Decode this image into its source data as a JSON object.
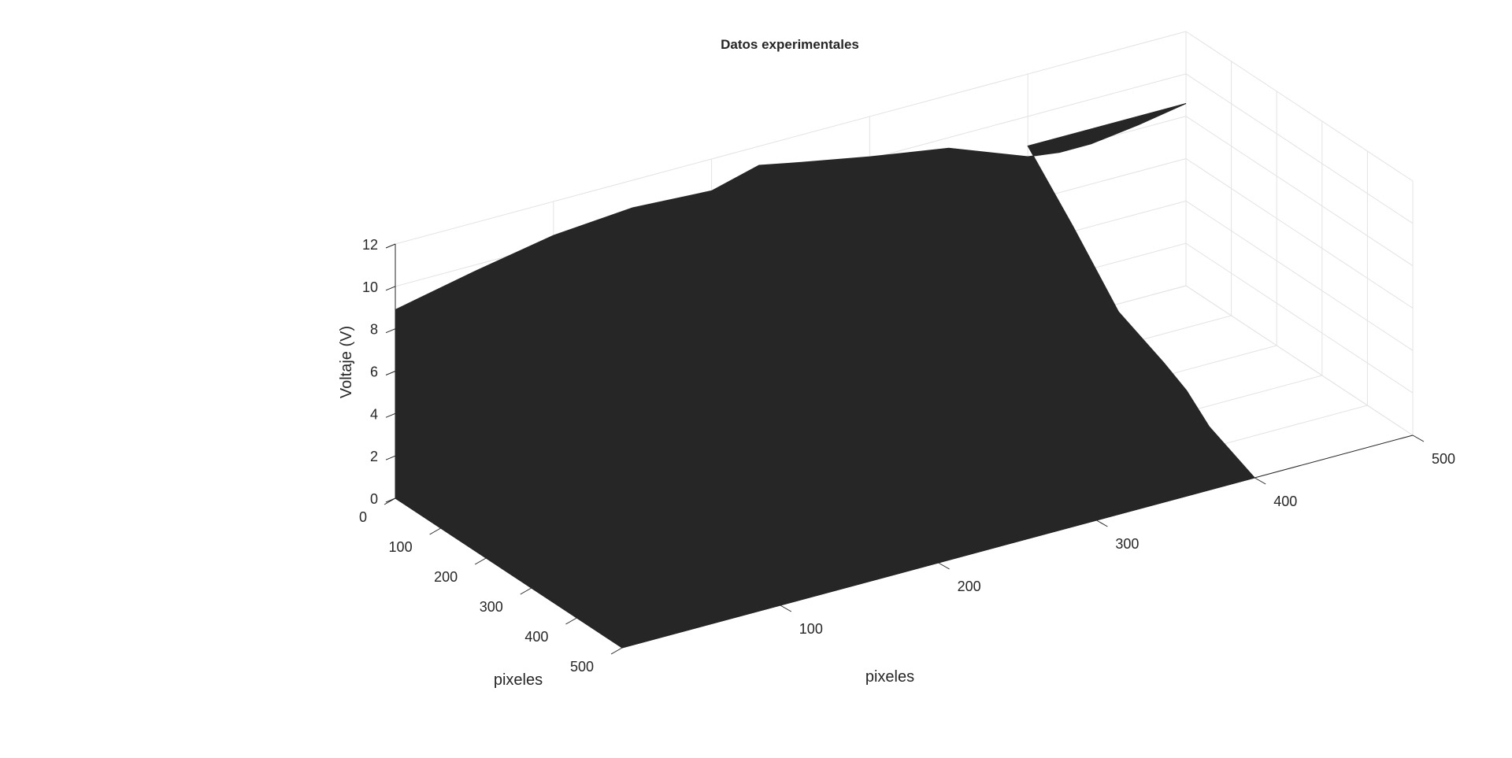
{
  "chart_data": {
    "type": "surface",
    "title": "Datos experimentales",
    "xlabel": "pixeles",
    "ylabel": "pixeles",
    "zlabel": "Voltaje (V)",
    "xlim": [
      0,
      500
    ],
    "ylim": [
      0,
      500
    ],
    "zlim": [
      0,
      12
    ],
    "xticks": [
      "0",
      "100",
      "200",
      "300",
      "400",
      "500"
    ],
    "yticks": [
      "100",
      "200",
      "300",
      "400",
      "500"
    ],
    "zticks": [
      "0",
      "2",
      "4",
      "6",
      "8",
      "10",
      "12"
    ],
    "grid": true,
    "surface_color": "#262626",
    "surface_extent": {
      "x": [
        0,
        500
      ],
      "y": [
        0,
        400
      ]
    },
    "edge_y0_profile": {
      "x": [
        0,
        50,
        100,
        150,
        200,
        230,
        250,
        300,
        350,
        400,
        420,
        440,
        470,
        500
      ],
      "z": [
        8.9,
        9.7,
        10.4,
        10.7,
        10.5,
        11.1,
        10.8,
        10.1,
        9.5,
        8.1,
        7.9,
        7.9,
        8.2,
        8.6
      ]
    },
    "edge_x500_profile": {
      "y": [
        0,
        100,
        200,
        300,
        350,
        400
      ],
      "z": [
        8.6,
        6.2,
        3.6,
        2.6,
        2.0,
        1.0
      ]
    }
  }
}
